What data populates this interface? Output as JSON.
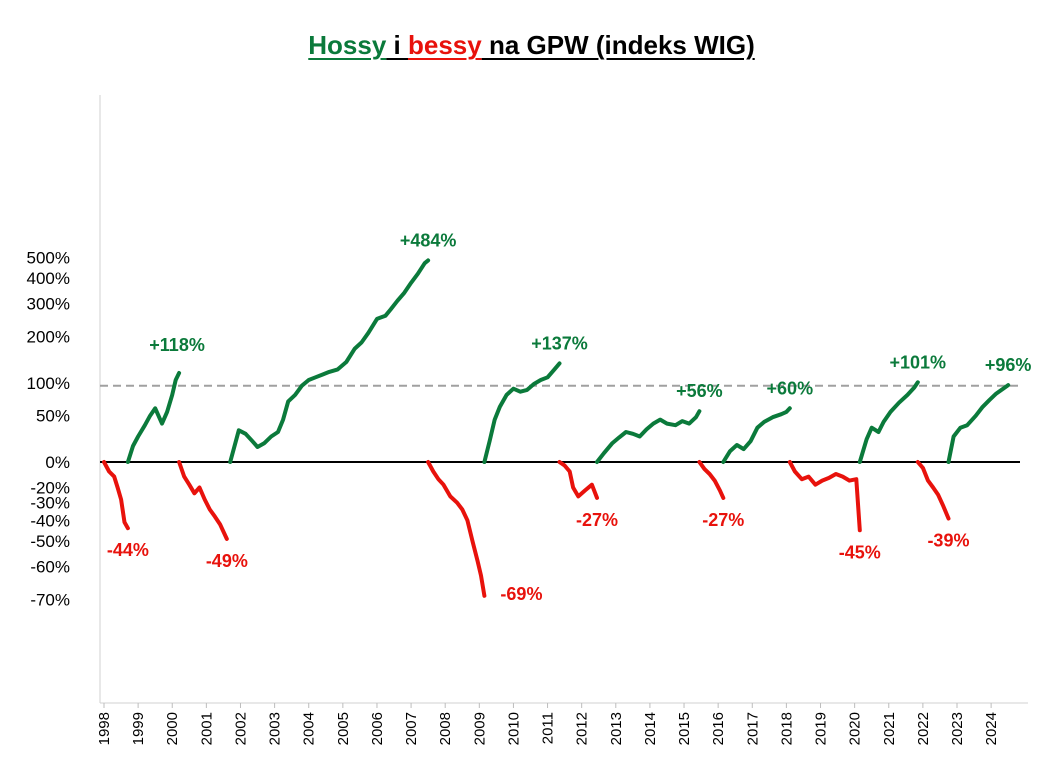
{
  "title": {
    "part1": "Hossy",
    "part2": " i ",
    "part3": "bessy",
    "part4": " na GPW (indeks WIG)",
    "color_bull": "#0b7a3b",
    "color_bear": "#e8120c"
  },
  "chart_data": {
    "type": "line",
    "title": "Hossy i bessy na GPW (indeks WIG)",
    "xlabel": "",
    "ylabel": "",
    "xlim": [
      1998,
      2024.7
    ],
    "yticks": [
      "500%",
      "400%",
      "300%",
      "200%",
      "100%",
      "50%",
      "0%",
      "-20%",
      "-30%",
      "-40%",
      "-50%",
      "-60%",
      "-70%"
    ],
    "ytick_values": [
      500,
      400,
      300,
      200,
      100,
      50,
      0,
      -20,
      -30,
      -40,
      -50,
      -60,
      -70
    ],
    "y_scale": "log of (1 + change)",
    "xticks": [
      "1998",
      "1999",
      "2000",
      "2001",
      "2002",
      "2003",
      "2004",
      "2005",
      "2006",
      "2007",
      "2008",
      "2009",
      "2010",
      "2011",
      "2012",
      "2013",
      "2014",
      "2015",
      "2016",
      "2017",
      "2018",
      "2019",
      "2020",
      "2021",
      "2022",
      "2023",
      "2024"
    ],
    "grid": false,
    "legend": "none",
    "reference_lines": [
      {
        "value": 0,
        "style": "solid",
        "color": "#000000"
      },
      {
        "value": 95,
        "style": "dashed",
        "color": "#a0a0a0"
      }
    ],
    "series": [
      {
        "type": "bear",
        "label": "-44%",
        "points": [
          [
            1998.0,
            0
          ],
          [
            1998.15,
            -8
          ],
          [
            1998.3,
            -12
          ],
          [
            1998.4,
            -20
          ],
          [
            1998.5,
            -28
          ],
          [
            1998.6,
            -41
          ],
          [
            1998.7,
            -44
          ]
        ]
      },
      {
        "type": "bull",
        "label": "+118%",
        "points": [
          [
            1998.7,
            0
          ],
          [
            1998.85,
            15
          ],
          [
            1999.0,
            25
          ],
          [
            1999.2,
            38
          ],
          [
            1999.35,
            50
          ],
          [
            1999.5,
            60
          ],
          [
            1999.7,
            40
          ],
          [
            1999.85,
            55
          ],
          [
            2000.0,
            80
          ],
          [
            2000.1,
            105
          ],
          [
            2000.2,
            118
          ]
        ]
      },
      {
        "type": "bear",
        "label": "-49%",
        "points": [
          [
            2000.2,
            0
          ],
          [
            2000.35,
            -12
          ],
          [
            2000.5,
            -18
          ],
          [
            2000.65,
            -24
          ],
          [
            2000.8,
            -20
          ],
          [
            2000.95,
            -28
          ],
          [
            2001.1,
            -34
          ],
          [
            2001.25,
            -38
          ],
          [
            2001.4,
            -42
          ],
          [
            2001.6,
            -49
          ]
        ]
      },
      {
        "type": "bull",
        "label": "+484%",
        "points": [
          [
            2001.7,
            0
          ],
          [
            2001.8,
            12
          ],
          [
            2001.95,
            32
          ],
          [
            2002.15,
            28
          ],
          [
            2002.35,
            20
          ],
          [
            2002.5,
            14
          ],
          [
            2002.7,
            18
          ],
          [
            2002.9,
            25
          ],
          [
            2003.1,
            30
          ],
          [
            2003.25,
            45
          ],
          [
            2003.4,
            70
          ],
          [
            2003.6,
            80
          ],
          [
            2003.8,
            95
          ],
          [
            2004.0,
            105
          ],
          [
            2004.2,
            110
          ],
          [
            2004.4,
            115
          ],
          [
            2004.6,
            120
          ],
          [
            2004.85,
            125
          ],
          [
            2005.1,
            140
          ],
          [
            2005.35,
            170
          ],
          [
            2005.55,
            185
          ],
          [
            2005.75,
            210
          ],
          [
            2006.0,
            250
          ],
          [
            2006.25,
            260
          ],
          [
            2006.4,
            280
          ],
          [
            2006.6,
            310
          ],
          [
            2006.8,
            340
          ],
          [
            2007.0,
            380
          ],
          [
            2007.2,
            420
          ],
          [
            2007.4,
            470
          ],
          [
            2007.5,
            484
          ]
        ]
      },
      {
        "type": "bear",
        "label": "-69%",
        "points": [
          [
            2007.5,
            0
          ],
          [
            2007.65,
            -8
          ],
          [
            2007.8,
            -14
          ],
          [
            2007.95,
            -18
          ],
          [
            2008.15,
            -26
          ],
          [
            2008.35,
            -30
          ],
          [
            2008.5,
            -34
          ],
          [
            2008.65,
            -40
          ],
          [
            2008.8,
            -50
          ],
          [
            2008.95,
            -58
          ],
          [
            2009.05,
            -63
          ],
          [
            2009.15,
            -69
          ]
        ]
      },
      {
        "type": "bull",
        "label": "+137%",
        "points": [
          [
            2009.15,
            0
          ],
          [
            2009.3,
            20
          ],
          [
            2009.45,
            45
          ],
          [
            2009.6,
            62
          ],
          [
            2009.8,
            80
          ],
          [
            2010.0,
            90
          ],
          [
            2010.2,
            85
          ],
          [
            2010.4,
            88
          ],
          [
            2010.6,
            98
          ],
          [
            2010.8,
            105
          ],
          [
            2011.0,
            110
          ],
          [
            2011.2,
            125
          ],
          [
            2011.35,
            137
          ]
        ]
      },
      {
        "type": "bear",
        "label": "-27%",
        "points": [
          [
            2011.35,
            0
          ],
          [
            2011.5,
            -3
          ],
          [
            2011.65,
            -8
          ],
          [
            2011.75,
            -20
          ],
          [
            2011.9,
            -26
          ],
          [
            2012.1,
            -22
          ],
          [
            2012.3,
            -18
          ],
          [
            2012.45,
            -27
          ]
        ]
      },
      {
        "type": "bull",
        "label": "+56%",
        "points": [
          [
            2012.45,
            0
          ],
          [
            2012.65,
            8
          ],
          [
            2012.9,
            18
          ],
          [
            2013.1,
            24
          ],
          [
            2013.3,
            30
          ],
          [
            2013.5,
            28
          ],
          [
            2013.7,
            25
          ],
          [
            2013.9,
            33
          ],
          [
            2014.1,
            40
          ],
          [
            2014.3,
            45
          ],
          [
            2014.5,
            40
          ],
          [
            2014.75,
            38
          ],
          [
            2014.95,
            43
          ],
          [
            2015.15,
            40
          ],
          [
            2015.35,
            48
          ],
          [
            2015.45,
            56
          ]
        ]
      },
      {
        "type": "bear",
        "label": "-27%",
        "points": [
          [
            2015.45,
            0
          ],
          [
            2015.6,
            -6
          ],
          [
            2015.75,
            -10
          ],
          [
            2015.9,
            -15
          ],
          [
            2016.05,
            -22
          ],
          [
            2016.15,
            -27
          ]
        ]
      },
      {
        "type": "bull",
        "label": "+60%",
        "points": [
          [
            2016.15,
            0
          ],
          [
            2016.35,
            10
          ],
          [
            2016.55,
            16
          ],
          [
            2016.75,
            12
          ],
          [
            2016.95,
            20
          ],
          [
            2017.15,
            35
          ],
          [
            2017.35,
            42
          ],
          [
            2017.6,
            48
          ],
          [
            2017.85,
            52
          ],
          [
            2018.0,
            55
          ],
          [
            2018.1,
            60
          ]
        ]
      },
      {
        "type": "bear",
        "label": "-45%",
        "points": [
          [
            2018.1,
            0
          ],
          [
            2018.25,
            -8
          ],
          [
            2018.45,
            -14
          ],
          [
            2018.65,
            -12
          ],
          [
            2018.85,
            -18
          ],
          [
            2019.05,
            -15
          ],
          [
            2019.25,
            -13
          ],
          [
            2019.45,
            -10
          ],
          [
            2019.65,
            -12
          ],
          [
            2019.85,
            -15
          ],
          [
            2020.05,
            -14
          ],
          [
            2020.15,
            -45
          ]
        ]
      },
      {
        "type": "bull",
        "label": "+101%",
        "points": [
          [
            2020.15,
            0
          ],
          [
            2020.35,
            22
          ],
          [
            2020.5,
            35
          ],
          [
            2020.7,
            30
          ],
          [
            2020.85,
            42
          ],
          [
            2021.05,
            55
          ],
          [
            2021.3,
            68
          ],
          [
            2021.55,
            80
          ],
          [
            2021.75,
            92
          ],
          [
            2021.85,
            101
          ]
        ]
      },
      {
        "type": "bear",
        "label": "-39%",
        "points": [
          [
            2021.85,
            0
          ],
          [
            2022.0,
            -5
          ],
          [
            2022.15,
            -15
          ],
          [
            2022.3,
            -20
          ],
          [
            2022.45,
            -25
          ],
          [
            2022.6,
            -32
          ],
          [
            2022.75,
            -39
          ]
        ]
      },
      {
        "type": "bull",
        "label": "+96%",
        "points": [
          [
            2022.75,
            0
          ],
          [
            2022.9,
            25
          ],
          [
            2023.1,
            35
          ],
          [
            2023.3,
            38
          ],
          [
            2023.55,
            50
          ],
          [
            2023.75,
            62
          ],
          [
            2023.95,
            72
          ],
          [
            2024.15,
            82
          ],
          [
            2024.35,
            90
          ],
          [
            2024.5,
            96
          ]
        ]
      }
    ]
  }
}
